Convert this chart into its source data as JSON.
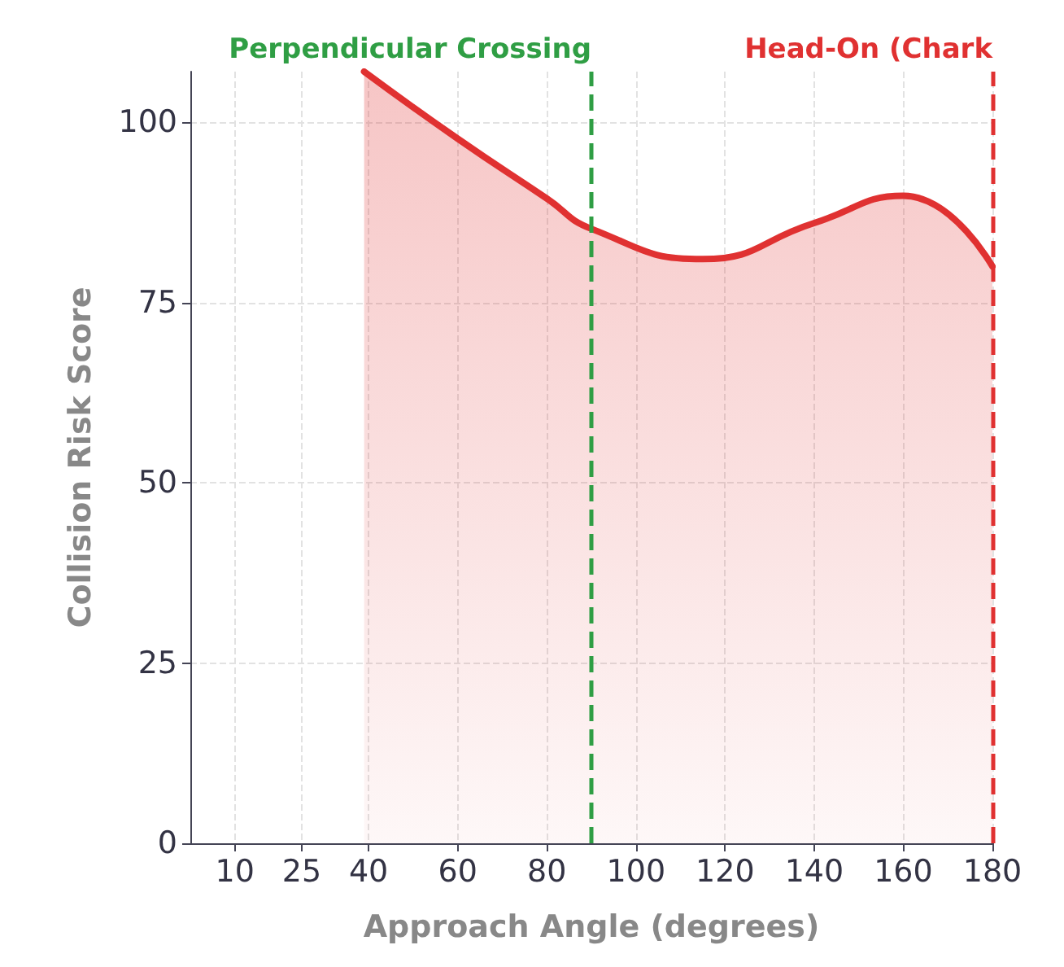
{
  "chart_data": {
    "type": "area",
    "xlabel": "Approach Angle (degrees)",
    "ylabel": "Collision Risk Score",
    "x": [
      39,
      60,
      80,
      90,
      115,
      140,
      160,
      180
    ],
    "series": [
      {
        "color": "#e03131",
        "values": [
          107,
          97.7,
          89.4,
          85.2,
          81,
          86,
          89.8,
          80
        ]
      }
    ],
    "xlim": [
      0,
      180
    ],
    "xticks": [
      10,
      25,
      40,
      60,
      80,
      100,
      120,
      140,
      160,
      180
    ],
    "ylim": [
      0,
      107
    ],
    "yticks": [
      0,
      25,
      50,
      75,
      100
    ],
    "grid": true,
    "marker": "none",
    "line_style": "solid",
    "ref_lines": [
      {
        "axis": "x",
        "value": 90,
        "label": "Perpendicular Crossing",
        "color": "#2f9e44",
        "line_style": "dashed"
      },
      {
        "axis": "x",
        "value": 180,
        "label": "Head-On (Chark",
        "color": "#e03131",
        "line_style": "dashed"
      }
    ]
  }
}
